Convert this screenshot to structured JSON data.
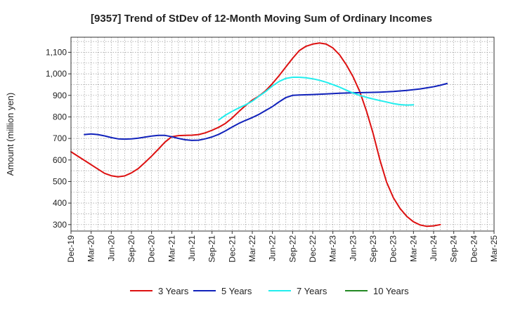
{
  "chart_data": {
    "type": "line",
    "title": "[9357]  Trend of StDev of 12-Month Moving Sum of Ordinary Incomes",
    "xlabel": "",
    "ylabel": "Amount (million yen)",
    "ylim": [
      270,
      1170
    ],
    "yticks": [
      300,
      400,
      500,
      600,
      700,
      800,
      900,
      1000,
      1100
    ],
    "ytick_labels": [
      "300",
      "400",
      "500",
      "600",
      "700",
      "800",
      "900",
      "1,000",
      "1,100"
    ],
    "xlim": [
      0,
      63
    ],
    "xticks": [
      0,
      3,
      6,
      9,
      12,
      15,
      18,
      21,
      24,
      27,
      30,
      33,
      36,
      39,
      42,
      45,
      48,
      51,
      54,
      57,
      60,
      63
    ],
    "xtick_labels": [
      "Dec-19",
      "Mar-20",
      "Jun-20",
      "Sep-20",
      "Dec-20",
      "Mar-21",
      "Jun-21",
      "Sep-21",
      "Dec-21",
      "Mar-22",
      "Jun-22",
      "Sep-22",
      "Dec-22",
      "Mar-23",
      "Jun-23",
      "Sep-23",
      "Dec-23",
      "Mar-24",
      "Jun-24",
      "Sep-24",
      "Dec-24",
      "Mar-25"
    ],
    "grid": true,
    "legend_position": "bottom",
    "series": [
      {
        "name": "3 Years",
        "color": "#dd1111",
        "points": [
          [
            0,
            638
          ],
          [
            2,
            598
          ],
          [
            4,
            558
          ],
          [
            5,
            538
          ],
          [
            6,
            527
          ],
          [
            7,
            522
          ],
          [
            8,
            526
          ],
          [
            9,
            540
          ],
          [
            10,
            560
          ],
          [
            11,
            588
          ],
          [
            12,
            618
          ],
          [
            13,
            650
          ],
          [
            14,
            683
          ],
          [
            15,
            708
          ],
          [
            16,
            713
          ],
          [
            17,
            714
          ],
          [
            18,
            715
          ],
          [
            19,
            718
          ],
          [
            20,
            726
          ],
          [
            21,
            738
          ],
          [
            22,
            752
          ],
          [
            23,
            770
          ],
          [
            24,
            795
          ],
          [
            25,
            825
          ],
          [
            26,
            853
          ],
          [
            27,
            878
          ],
          [
            28,
            897
          ],
          [
            29,
            922
          ],
          [
            30,
            955
          ],
          [
            31,
            992
          ],
          [
            32,
            1032
          ],
          [
            33,
            1072
          ],
          [
            34,
            1108
          ],
          [
            35,
            1128
          ],
          [
            36,
            1138
          ],
          [
            37,
            1143
          ],
          [
            38,
            1138
          ],
          [
            39,
            1120
          ],
          [
            40,
            1088
          ],
          [
            41,
            1042
          ],
          [
            42,
            987
          ],
          [
            43,
            918
          ],
          [
            44,
            828
          ],
          [
            45,
            722
          ],
          [
            46,
            600
          ],
          [
            47,
            497
          ],
          [
            48,
            425
          ],
          [
            49,
            375
          ],
          [
            50,
            338
          ],
          [
            51,
            313
          ],
          [
            52,
            298
          ],
          [
            53,
            292
          ],
          [
            54,
            294
          ],
          [
            55,
            300
          ]
        ]
      },
      {
        "name": "5 Years",
        "color": "#1122bb",
        "points": [
          [
            2,
            718
          ],
          [
            3,
            721
          ],
          [
            4,
            718
          ],
          [
            5,
            712
          ],
          [
            6,
            704
          ],
          [
            7,
            698
          ],
          [
            8,
            697
          ],
          [
            9,
            698
          ],
          [
            10,
            701
          ],
          [
            11,
            706
          ],
          [
            12,
            711
          ],
          [
            13,
            714
          ],
          [
            14,
            714
          ],
          [
            15,
            708
          ],
          [
            16,
            700
          ],
          [
            17,
            694
          ],
          [
            18,
            691
          ],
          [
            19,
            692
          ],
          [
            20,
            698
          ],
          [
            21,
            707
          ],
          [
            22,
            719
          ],
          [
            23,
            735
          ],
          [
            24,
            753
          ],
          [
            25,
            770
          ],
          [
            26,
            784
          ],
          [
            27,
            797
          ],
          [
            28,
            812
          ],
          [
            29,
            830
          ],
          [
            30,
            848
          ],
          [
            31,
            870
          ],
          [
            32,
            890
          ],
          [
            33,
            900
          ],
          [
            34,
            902
          ],
          [
            36,
            904
          ],
          [
            38,
            907
          ],
          [
            40,
            910
          ],
          [
            42,
            912
          ],
          [
            44,
            913
          ],
          [
            46,
            915
          ],
          [
            48,
            918
          ],
          [
            50,
            923
          ],
          [
            52,
            930
          ],
          [
            54,
            940
          ],
          [
            55,
            947
          ],
          [
            56,
            955
          ]
        ]
      },
      {
        "name": "7 Years",
        "color": "#22eeee",
        "points": [
          [
            22,
            786
          ],
          [
            23,
            808
          ],
          [
            24,
            826
          ],
          [
            25,
            842
          ],
          [
            26,
            856
          ],
          [
            27,
            873
          ],
          [
            28,
            896
          ],
          [
            29,
            918
          ],
          [
            30,
            944
          ],
          [
            31,
            965
          ],
          [
            32,
            979
          ],
          [
            33,
            984
          ],
          [
            34,
            984
          ],
          [
            35,
            982
          ],
          [
            36,
            977
          ],
          [
            37,
            970
          ],
          [
            38,
            961
          ],
          [
            39,
            950
          ],
          [
            40,
            938
          ],
          [
            41,
            924
          ],
          [
            42,
            911
          ],
          [
            43,
            900
          ],
          [
            44,
            891
          ],
          [
            45,
            883
          ],
          [
            46,
            876
          ],
          [
            47,
            869
          ],
          [
            48,
            862
          ],
          [
            49,
            857
          ],
          [
            50,
            855
          ],
          [
            51,
            856
          ]
        ]
      },
      {
        "name": "10 Years",
        "color": "#228822",
        "points": []
      }
    ]
  }
}
